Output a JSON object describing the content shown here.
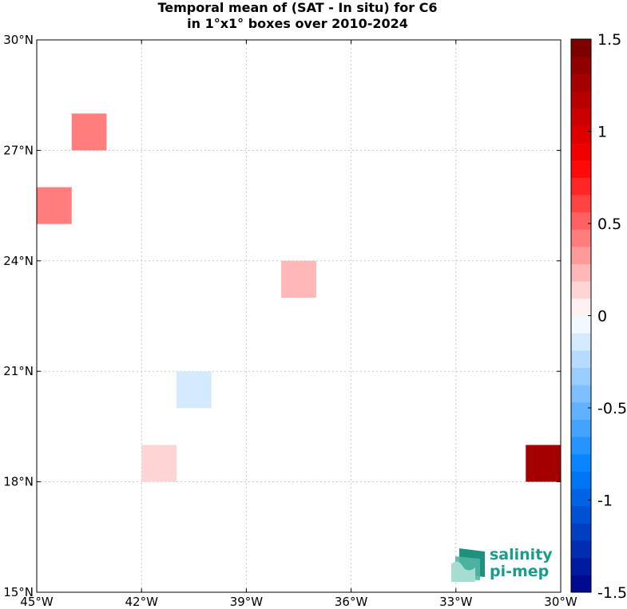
{
  "chart_data": {
    "type": "heatmap",
    "title_line1": "Temporal mean of (SAT - In situ) for C6",
    "title_line2": "in 1°x1° boxes over 2010-2024",
    "xlim": [
      -45,
      -30
    ],
    "ylim": [
      15,
      30
    ],
    "x_ticks": [
      {
        "value": -45,
        "label": "45°W"
      },
      {
        "value": -42,
        "label": "42°W"
      },
      {
        "value": -39,
        "label": "39°W"
      },
      {
        "value": -36,
        "label": "36°W"
      },
      {
        "value": -33,
        "label": "33°W"
      },
      {
        "value": -30,
        "label": "30°W"
      }
    ],
    "y_ticks": [
      {
        "value": 15,
        "label": "15°N"
      },
      {
        "value": 18,
        "label": "18°N"
      },
      {
        "value": 21,
        "label": "21°N"
      },
      {
        "value": 24,
        "label": "24°N"
      },
      {
        "value": 27,
        "label": "27°N"
      },
      {
        "value": 30,
        "label": "30°N"
      }
    ],
    "grid": true,
    "cells": [
      {
        "lon_min": -44,
        "lat_min": 27,
        "value": 0.4
      },
      {
        "lon_min": -45,
        "lat_min": 25,
        "value": 0.4
      },
      {
        "lon_min": -38,
        "lat_min": 23,
        "value": 0.25
      },
      {
        "lon_min": -41,
        "lat_min": 20,
        "value": -0.15
      },
      {
        "lon_min": -42,
        "lat_min": 18,
        "value": 0.15
      },
      {
        "lon_min": -31,
        "lat_min": 18,
        "value": 1.3
      }
    ],
    "colorbar": {
      "min": -1.5,
      "max": 1.5,
      "levels": 32,
      "ticks": [
        {
          "value": 1.5,
          "label": "1.5"
        },
        {
          "value": 1,
          "label": "1"
        },
        {
          "value": 0.5,
          "label": "0.5"
        },
        {
          "value": 0,
          "label": "0"
        },
        {
          "value": -0.5,
          "label": "-0.5"
        },
        {
          "value": -1,
          "label": "-1"
        },
        {
          "value": -1.5,
          "label": "-1.5"
        }
      ]
    }
  },
  "logo": {
    "line1": "salinity",
    "line2": "pi-mep"
  }
}
